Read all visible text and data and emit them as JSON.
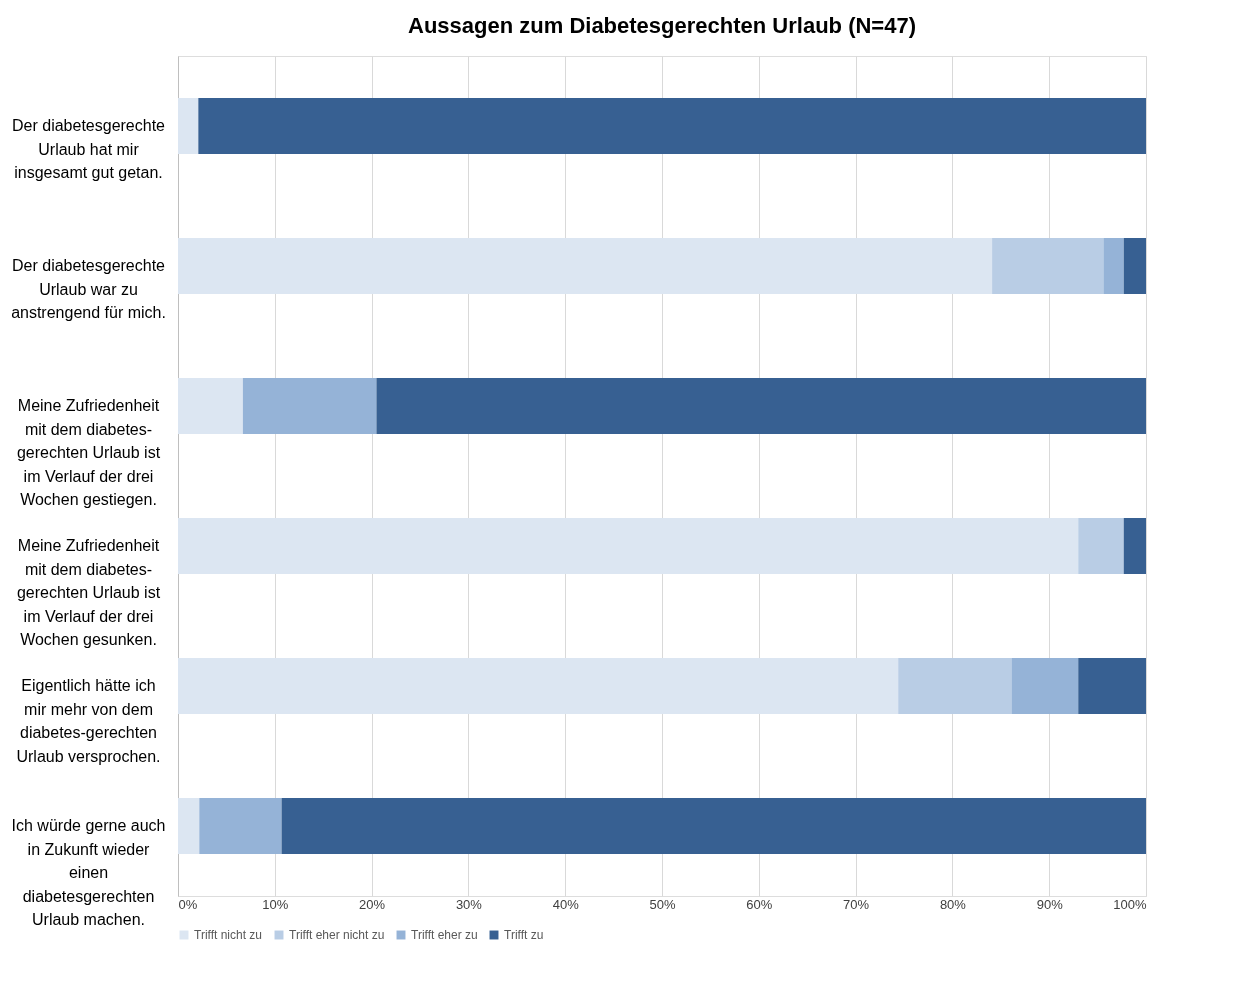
{
  "chart_data": {
    "type": "bar",
    "orientation": "horizontal",
    "stacked": true,
    "title": "Aussagen zum Diabetesgerechten Urlaub (N=47)",
    "categories": [
      "Der diabetesgerechte Urlaub hat mir insgesamt gut getan.",
      "Der diabetesgerechte Urlaub war zu anstrengend für mich.",
      "Meine Zufriedenheit mit dem diabetes-gerechten Urlaub ist im Verlauf der drei Wochen gestiegen.",
      "Meine Zufriedenheit mit dem diabetes-gerechten Urlaub ist im Verlauf der drei Wochen gesunken.",
      "Eigentlich hätte ich mir mehr von dem diabetes-gerechten Urlaub versprochen.",
      "Ich würde gerne auch in Zukunft wieder einen diabetesgerechten Urlaub machen."
    ],
    "series": [
      {
        "name": "Trifft nicht zu",
        "color": "#dce6f2",
        "values": [
          2.1,
          84.1,
          6.7,
          93.0,
          74.4,
          2.2
        ]
      },
      {
        "name": "Trifft eher nicht zu",
        "color": "#b9cde5",
        "values": [
          0,
          11.5,
          0,
          4.7,
          11.7,
          0
        ]
      },
      {
        "name": "Trifft eher zu",
        "color": "#95b3d7",
        "values": [
          0,
          2.1,
          13.8,
          0,
          6.9,
          8.5
        ]
      },
      {
        "name": "Trifft zu",
        "color": "#376092",
        "values": [
          97.9,
          2.3,
          79.5,
          2.3,
          7.0,
          89.3
        ]
      }
    ],
    "xlim": [
      0,
      100
    ],
    "xticks": [
      {
        "value": 0,
        "label": "0%"
      },
      {
        "value": 10,
        "label": "10%"
      },
      {
        "value": 20,
        "label": "20%"
      },
      {
        "value": 30,
        "label": "30%"
      },
      {
        "value": 40,
        "label": "40%"
      },
      {
        "value": 50,
        "label": "50%"
      },
      {
        "value": 60,
        "label": "60%"
      },
      {
        "value": 70,
        "label": "70%"
      },
      {
        "value": 80,
        "label": "80%"
      },
      {
        "value": 90,
        "label": "90%"
      },
      {
        "value": 100,
        "label": "100%"
      }
    ],
    "grid": "x",
    "legend": "bottom"
  }
}
